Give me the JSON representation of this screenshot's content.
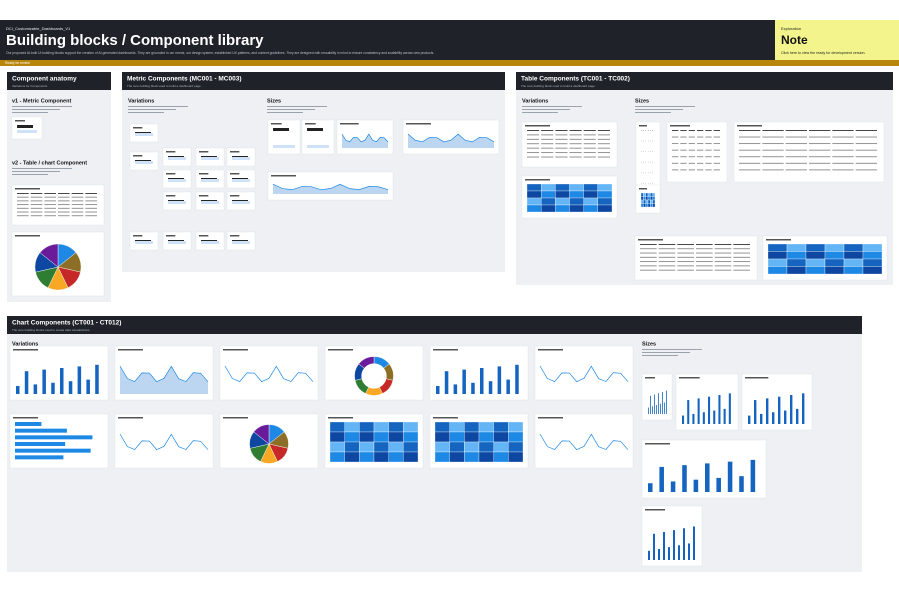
{
  "header": {
    "file_name": "DCI_Customizable_Dashboards_V1",
    "title": "Building blocks / Component library",
    "description": "Our proposed AI-built UI building blocks support the creation of AI-generated dashboards. They are grounded in our needs, our design system, established UX patterns, and content guidelines. They are designed with reusability in mind to ensure consistency and scalability across new products.",
    "status": "Ready for review"
  },
  "note": {
    "label": "Exploration",
    "title": "Note",
    "text": "Click here to view the ready for development version."
  },
  "sections": [
    {
      "title": "Component anatomy",
      "subtitle": "Variations for Components",
      "groups": [
        "v1 - Metric Component",
        "v2 - Table / chart Component"
      ]
    },
    {
      "title": "Metric Components (MC001 - MC003)",
      "subtitle": "The core building block used to build a dashboard page.",
      "groups": [
        "Variations",
        "Sizes"
      ]
    },
    {
      "title": "Table Components  (TC001 - TC002)",
      "subtitle": "The core building block used to build a dashboard page.",
      "groups": [
        "Variations",
        "Sizes"
      ]
    },
    {
      "title": "Chart Components (CT001 - CT012)",
      "subtitle": "The core building blocks used to create data visualizations.",
      "groups": [
        "Variations",
        "Sizes"
      ]
    }
  ]
}
